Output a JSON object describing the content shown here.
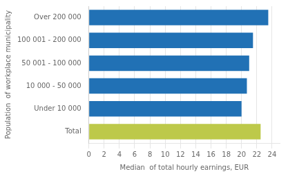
{
  "chart_data": {
    "type": "bar",
    "orientation": "horizontal",
    "categories": [
      "Total",
      "Under 10 000",
      "10 000 - 50 000",
      "50 001 - 100 000",
      "100 001 - 200 000",
      "Over 200 000"
    ],
    "values": [
      22.5,
      20.0,
      20.7,
      21.0,
      21.5,
      23.5
    ],
    "colors": [
      "#bdc94a",
      "#2171b5",
      "#2171b5",
      "#2171b5",
      "#2171b5",
      "#2171b5"
    ],
    "xlabel": "Median  of total hourly earnings, EUR",
    "ylabel": "Population  of workplace municipality",
    "xlim": [
      0,
      25
    ],
    "xticks": [
      0,
      2,
      4,
      6,
      8,
      10,
      12,
      14,
      16,
      18,
      20,
      22,
      24
    ],
    "grid": true
  }
}
